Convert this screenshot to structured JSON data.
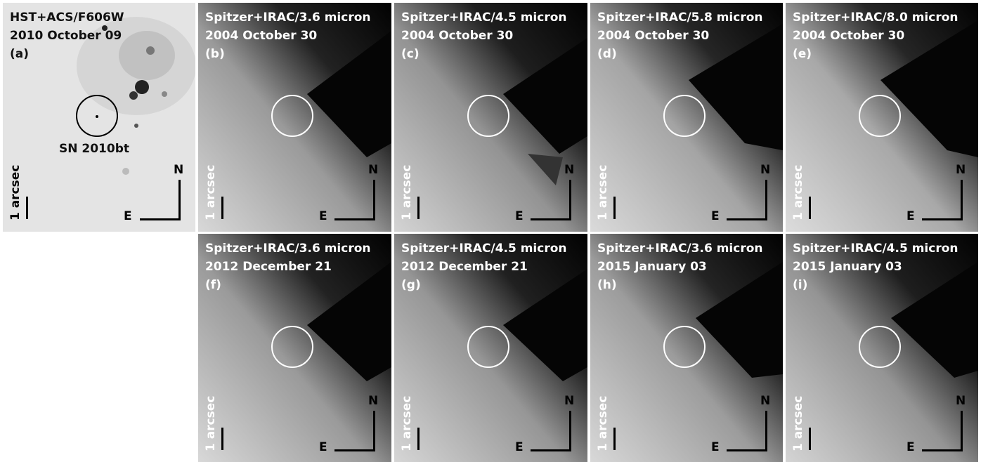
{
  "panels": [
    {
      "id": "a",
      "style": "dark",
      "lines": [
        "HST+ACS/F606W",
        "2010 October 09",
        "(a)"
      ],
      "annotation": "SN 2010bt",
      "scale_label": "1 arcsec",
      "north_label": "N",
      "east_label": "E"
    },
    {
      "id": "b",
      "style": "light",
      "lines": [
        "Spitzer+IRAC/3.6 micron",
        "2004 October 30",
        "(b)"
      ],
      "scale_label": "1 arcsec",
      "north_label": "N",
      "east_label": "E"
    },
    {
      "id": "c",
      "style": "light",
      "lines": [
        "Spitzer+IRAC/4.5 micron",
        "2004 October 30",
        "(c)"
      ],
      "scale_label": "1 arcsec",
      "north_label": "N",
      "east_label": "E"
    },
    {
      "id": "d",
      "style": "light",
      "lines": [
        "Spitzer+IRAC/5.8 micron",
        "2004 October 30",
        "(d)"
      ],
      "scale_label": "1 arcsec",
      "north_label": "N",
      "east_label": "E"
    },
    {
      "id": "e",
      "style": "light",
      "lines": [
        "Spitzer+IRAC/8.0 micron",
        "2004 October 30",
        "(e)"
      ],
      "scale_label": "1 arcsec",
      "north_label": "N",
      "east_label": "E"
    },
    {
      "id": "f",
      "style": "light",
      "lines": [
        "Spitzer+IRAC/3.6 micron",
        "2012 December 21",
        "(f)"
      ],
      "scale_label": "1 arcsec",
      "north_label": "N",
      "east_label": "E"
    },
    {
      "id": "g",
      "style": "light",
      "lines": [
        "Spitzer+IRAC/4.5 micron",
        "2012 December 21",
        "(g)"
      ],
      "scale_label": "1 arcsec",
      "north_label": "N",
      "east_label": "E"
    },
    {
      "id": "h",
      "style": "light",
      "lines": [
        "Spitzer+IRAC/3.6 micron",
        "2015 January 03",
        "(h)"
      ],
      "scale_label": "1 arcsec",
      "north_label": "N",
      "east_label": "E"
    },
    {
      "id": "i",
      "style": "light",
      "lines": [
        "Spitzer+IRAC/4.5 micron",
        "2015 January 03",
        "(i)"
      ],
      "scale_label": "1 arcsec",
      "north_label": "N",
      "east_label": "E"
    }
  ],
  "colors": {
    "background": "#ffffff",
    "hst_background": "#e6e6e6",
    "spitzer_dark": "#050505",
    "spitzer_light": "#d2d2d2",
    "circle_on_spitzer": "#ffffff",
    "circle_on_hst": "#000000"
  }
}
